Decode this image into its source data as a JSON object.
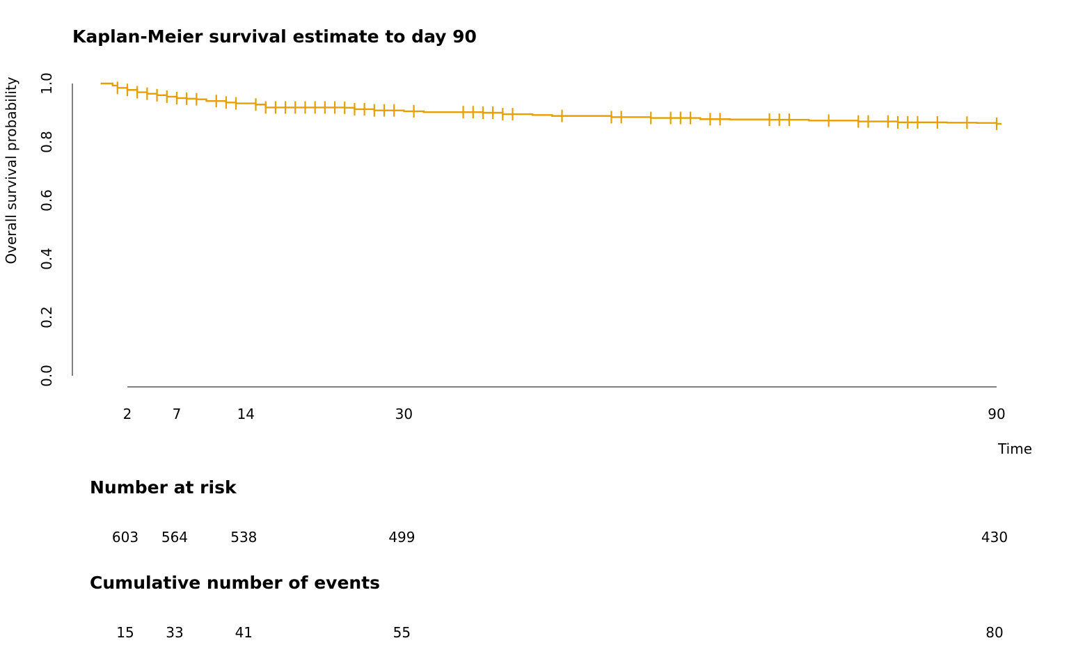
{
  "chart_data": {
    "type": "line",
    "title": "Kaplan-Meier survival estimate to day 90",
    "xlabel": "Time",
    "ylabel": "Overall survival probability",
    "xlim": [
      -2,
      90
    ],
    "ylim": [
      0,
      1
    ],
    "x_ticks": [
      2,
      7,
      14,
      30,
      90
    ],
    "y_ticks": [
      0.0,
      0.2,
      0.4,
      0.6,
      0.8,
      1.0
    ],
    "y_tick_labels": [
      "0.0",
      "0.2",
      "0.4",
      "0.6",
      "0.8",
      "1.0"
    ],
    "grid": false,
    "line_color": "#E69F00",
    "axis_color": "#808080",
    "series": [
      {
        "steps": [
          [
            0,
            1.0
          ],
          [
            0.5,
            0.993
          ],
          [
            1,
            0.985
          ],
          [
            2,
            0.978
          ],
          [
            3,
            0.97
          ],
          [
            4,
            0.965
          ],
          [
            5,
            0.96
          ],
          [
            6,
            0.955
          ],
          [
            7,
            0.95
          ],
          [
            8,
            0.948
          ],
          [
            9,
            0.946
          ],
          [
            10,
            0.94
          ],
          [
            12,
            0.935
          ],
          [
            13,
            0.932
          ],
          [
            15,
            0.928
          ],
          [
            16,
            0.918
          ],
          [
            24,
            0.917
          ],
          [
            25,
            0.912
          ],
          [
            27,
            0.908
          ],
          [
            30,
            0.905
          ],
          [
            32,
            0.902
          ],
          [
            38,
            0.9
          ],
          [
            40,
            0.895
          ],
          [
            43,
            0.892
          ],
          [
            45,
            0.889
          ],
          [
            50,
            0.889
          ],
          [
            51,
            0.885
          ],
          [
            55,
            0.882
          ],
          [
            60,
            0.878
          ],
          [
            63,
            0.877
          ],
          [
            67,
            0.876
          ],
          [
            71,
            0.873
          ],
          [
            76,
            0.87
          ],
          [
            80,
            0.867
          ],
          [
            82,
            0.867
          ],
          [
            85,
            0.866
          ],
          [
            88,
            0.865
          ],
          [
            90,
            0.862
          ]
        ],
        "censor_times": [
          1,
          2,
          3,
          4,
          5,
          6,
          7,
          8,
          9,
          11,
          12,
          13,
          15,
          16,
          17,
          18,
          19,
          20,
          21,
          22,
          23,
          24,
          25,
          26,
          27,
          28,
          29,
          31,
          36,
          37,
          38,
          39,
          40,
          41,
          46,
          51,
          52,
          55,
          57,
          58,
          59,
          61,
          62,
          67,
          68,
          69,
          73,
          76,
          77,
          79,
          80,
          81,
          82,
          84,
          87,
          90
        ]
      }
    ]
  },
  "risk_table": {
    "at_risk_title": "Number at risk",
    "at_risk_values": [
      "603",
      "564",
      "538",
      "499",
      "430"
    ],
    "events_title": "Cumulative number of events",
    "events_values": [
      "15",
      "33",
      "41",
      "55",
      "80"
    ]
  }
}
